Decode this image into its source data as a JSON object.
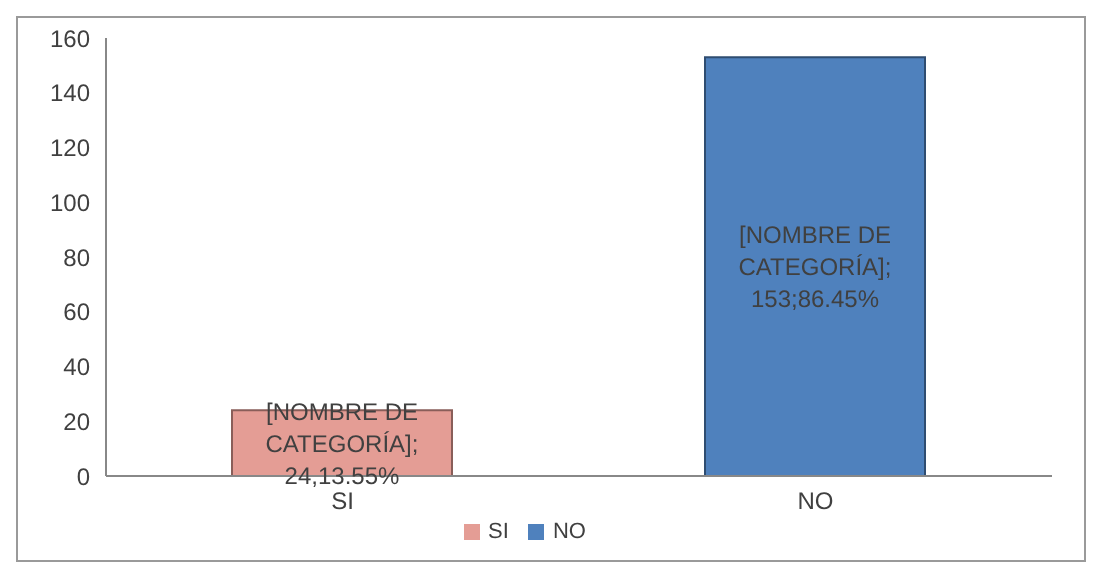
{
  "chart_data": {
    "type": "bar",
    "categories": [
      "SI",
      "NO"
    ],
    "series": [
      {
        "name": "SI",
        "color": "#e49d95",
        "values": [
          24,
          null
        ],
        "value_labels": [
          "[NOMBRE DE CATEGORÍA]; 24,13.55%",
          null
        ]
      },
      {
        "name": "NO",
        "color": "#4f81bd",
        "values": [
          null,
          153
        ],
        "value_labels": [
          null,
          "[NOMBRE DE CATEGORÍA]; 153;86.45%"
        ]
      }
    ],
    "ylim": [
      0,
      160
    ],
    "yticks": [
      0,
      20,
      40,
      60,
      80,
      100,
      120,
      140,
      160
    ],
    "legend": "bottom"
  }
}
